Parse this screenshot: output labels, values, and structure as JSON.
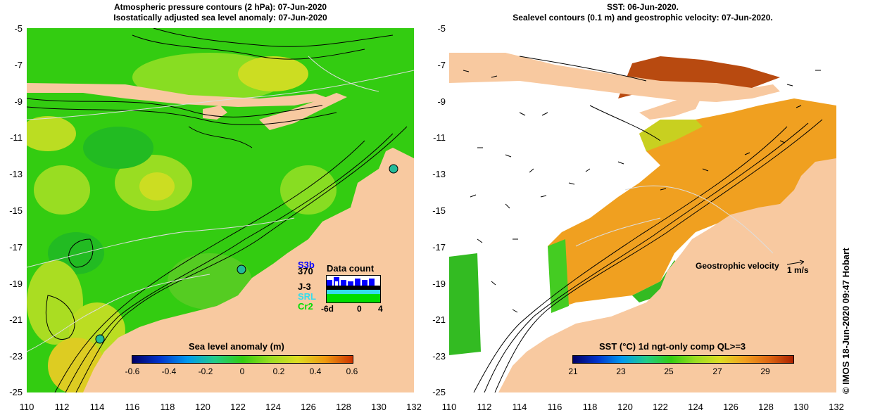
{
  "left_panel": {
    "title_line1": "Atmospheric pressure contours (2 hPa): 07-Jun-2020",
    "title_line2": "Isostatically adjusted sea level anomaly: 07-Jun-2020",
    "colorbar": {
      "title": "Sea level anomaly (m)",
      "ticks": [
        "-0.6",
        "-0.4",
        "-0.2",
        "0",
        "0.2",
        "0.4",
        "0.6"
      ]
    },
    "data_count": {
      "title": "Data count",
      "satellites": [
        {
          "name": "S3b",
          "color": "#0000ff"
        },
        {
          "name": "370",
          "color": "#000000"
        },
        {
          "name": "J-3",
          "color": "#000000"
        },
        {
          "name": "SRL",
          "color": "#33ddee"
        },
        {
          "name": "Cr2",
          "color": "#00dd00"
        }
      ],
      "ticks": [
        "-6d",
        "0",
        "4"
      ]
    }
  },
  "right_panel": {
    "title_line1": "SST: 06-Jun-2020.",
    "title_line2": "Sealevel contours (0.1 m) and geostrophic velocity: 07-Jun-2020.",
    "colorbar": {
      "title": "SST (°C) 1d ngt-only comp QL>=3",
      "ticks": [
        "21",
        "23",
        "25",
        "27",
        "29"
      ]
    },
    "velocity_legend": {
      "label": "Geostrophic velocity",
      "scale": "1 m/s"
    }
  },
  "axes": {
    "lat_ticks": [
      "-5",
      "-7",
      "-9",
      "-11",
      "-13",
      "-15",
      "-17",
      "-19",
      "-21",
      "-23",
      "-25"
    ],
    "lon_ticks": [
      "110",
      "112",
      "114",
      "116",
      "118",
      "120",
      "122",
      "124",
      "126",
      "128",
      "130",
      "132"
    ]
  },
  "credit": "©  IMOS 18-Jun-2020 09:47 Hobart",
  "colors": {
    "land": "#f8c9a0",
    "ocean_green": "#33cc11",
    "sst_orange": "#f0a020"
  }
}
